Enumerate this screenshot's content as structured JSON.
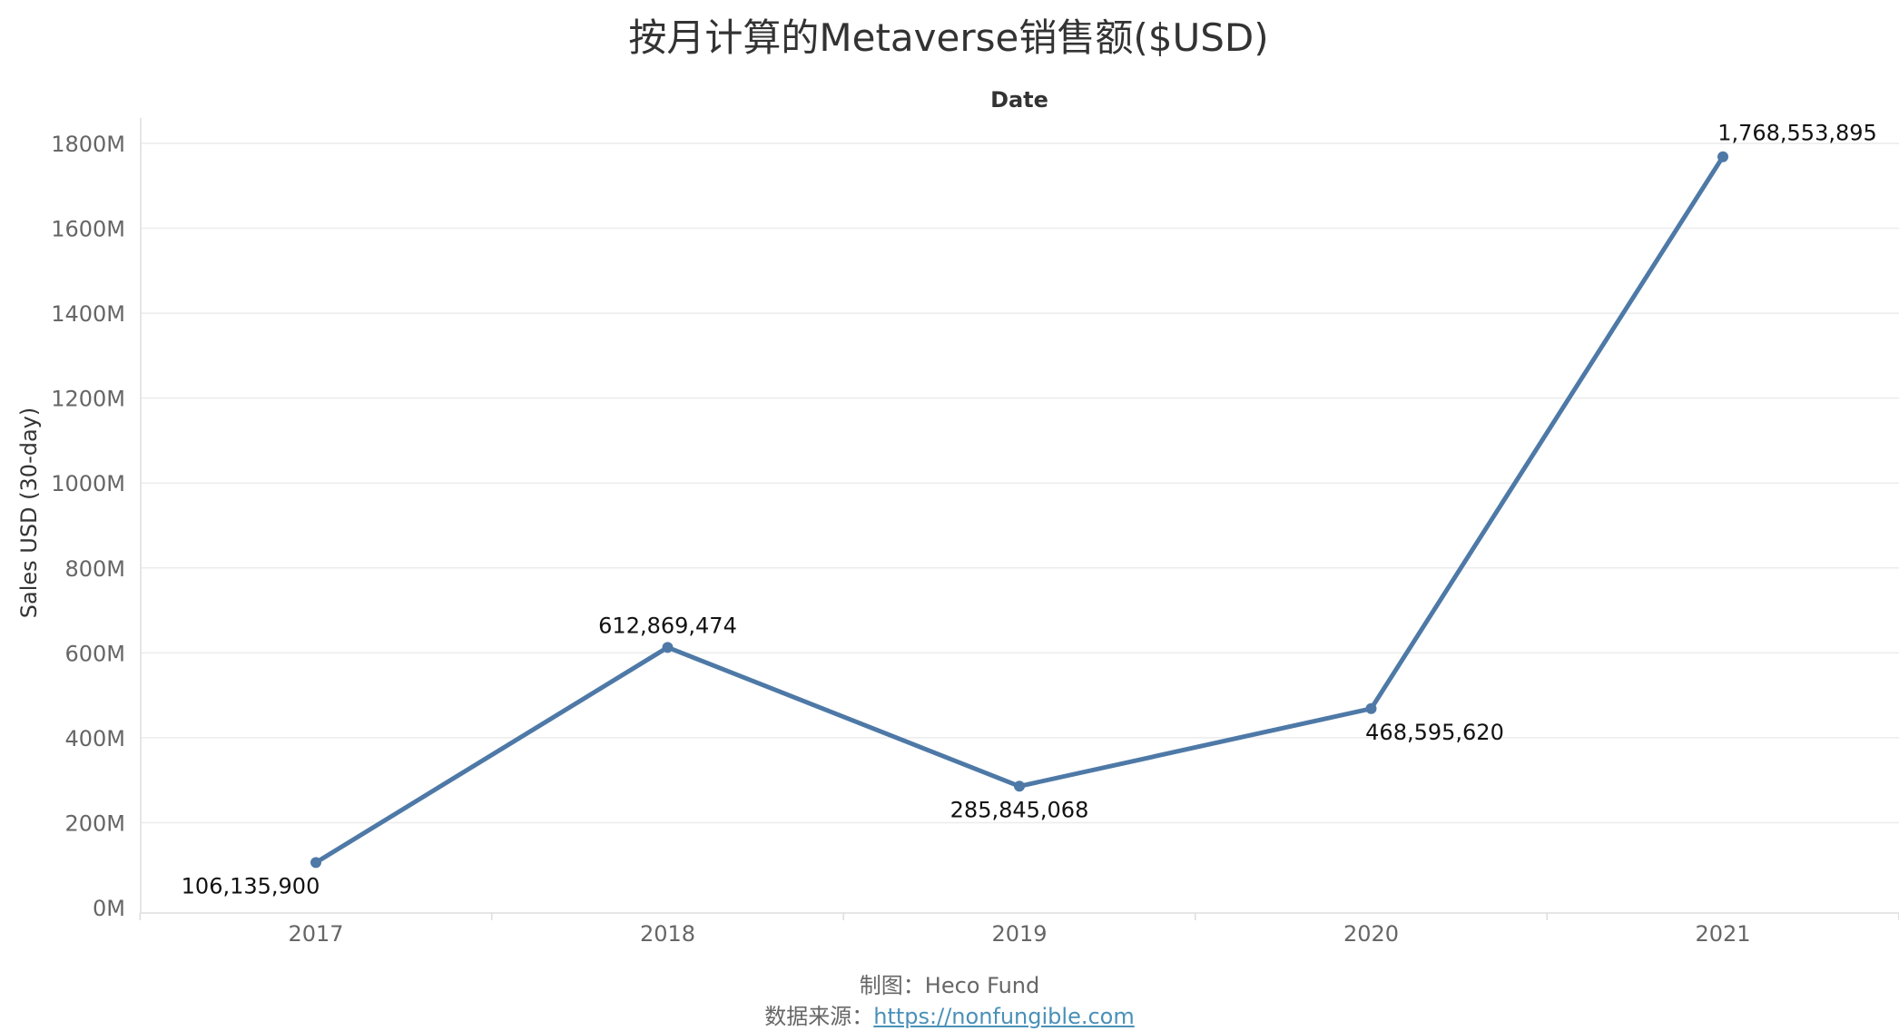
{
  "chart_data": {
    "type": "line",
    "title": "按月计算的Metaverse销售额($USD)",
    "xlabel": "Date",
    "ylabel": "Sales USD (30-day)",
    "categories": [
      "2017",
      "2018",
      "2019",
      "2020",
      "2021"
    ],
    "values": [
      106135900,
      612869474,
      285845068,
      468595620,
      1768553895
    ],
    "data_labels": [
      "106,135,900",
      "612,869,474",
      "285,845,068",
      "468,595,620",
      "1,768,553,895"
    ],
    "y_ticks": [
      0,
      200000000,
      400000000,
      600000000,
      800000000,
      1000000000,
      1200000000,
      1400000000,
      1600000000,
      1800000000
    ],
    "y_tick_labels": [
      "0M",
      "200M",
      "400M",
      "600M",
      "800M",
      "1000M",
      "1200M",
      "1400M",
      "1600M",
      "1800M"
    ],
    "ylim": [
      0,
      1800000000
    ],
    "grid": true,
    "line_color": "#4e79a7"
  },
  "footer": {
    "credit_label": "制图：",
    "credit_value": "Heco Fund",
    "source_label": "数据来源：",
    "source_link": "https://nonfungible.com"
  }
}
